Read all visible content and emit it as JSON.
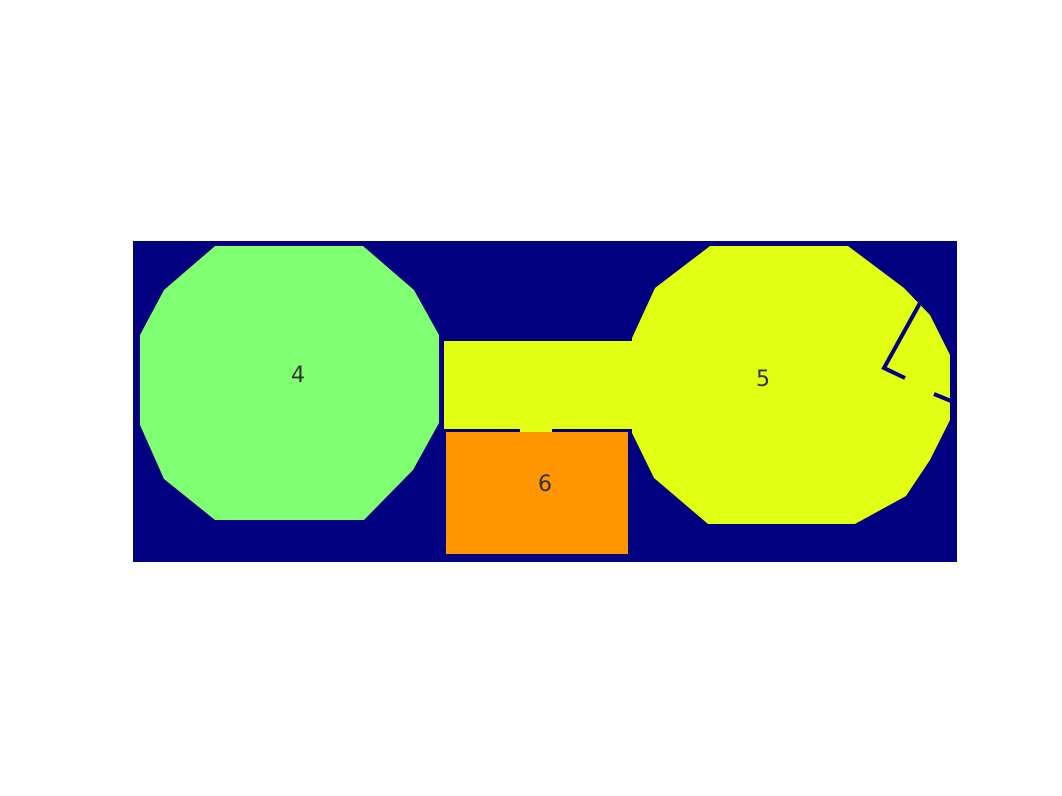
{
  "diagram": {
    "colors": {
      "page_background": "#ffffff",
      "map_background": "#000080",
      "region_4": "#80ff73",
      "region_5": "#e1ff12",
      "region_6": "#ff9500",
      "corridor": "#e1ff12",
      "wall_lines": "#000080",
      "label_text": "#333333"
    },
    "regions": [
      {
        "id": "region-4",
        "label": "4",
        "shape": "dodecagon"
      },
      {
        "id": "region-5",
        "label": "5",
        "shape": "dodecagon"
      },
      {
        "id": "region-6",
        "label": "6",
        "shape": "rectangle"
      }
    ],
    "labels": {
      "region_4": "4",
      "region_5": "5",
      "region_6": "6"
    }
  }
}
